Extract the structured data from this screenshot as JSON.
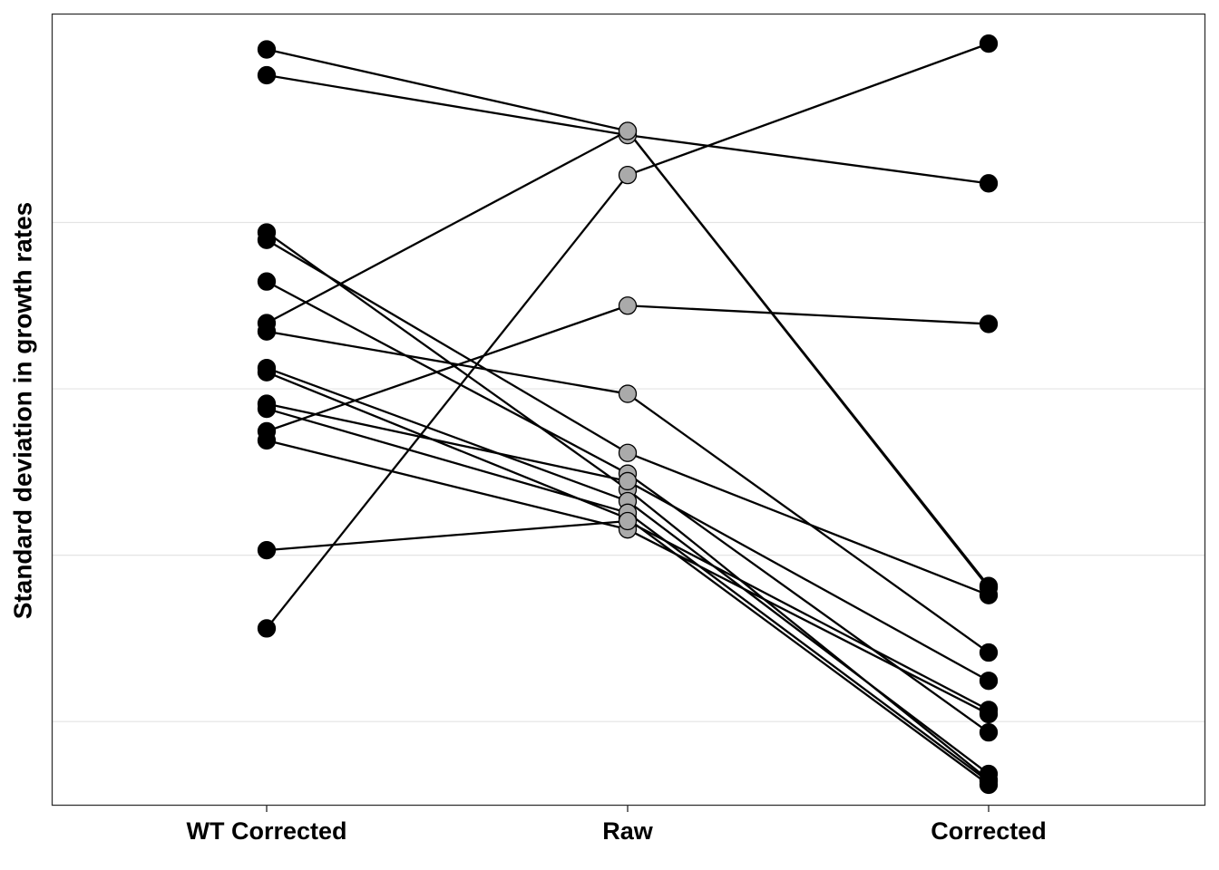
{
  "chart_data": {
    "type": "line",
    "title": "",
    "xlabel": "",
    "ylabel": "Standard deviation in growth rates",
    "categories": [
      "WT Corrected",
      "Raw",
      "Corrected"
    ],
    "y_tick_labels_shown": false,
    "grid": "horizontal major lines only",
    "legend": "none",
    "colors": {
      "line": "#000000",
      "wt_corrected_point": "#000000",
      "raw_point": "#aaaaaa",
      "corrected_point": "#000000",
      "gridline": "#e4e4e4",
      "panel_border": "#333333"
    },
    "ylim": [
      0.1,
      1.05
    ],
    "y_gridlines": [
      0.2,
      0.4,
      0.6,
      0.8
    ],
    "series": [
      {
        "values": [
          1.008,
          0.91,
          0.363
        ]
      },
      {
        "values": [
          0.977,
          0.905,
          0.847
        ]
      },
      {
        "values": [
          0.788,
          0.479,
          0.13
        ]
      },
      {
        "values": [
          0.779,
          0.523,
          0.352
        ]
      },
      {
        "values": [
          0.729,
          0.498,
          0.187
        ]
      },
      {
        "values": [
          0.679,
          0.91,
          0.361
        ]
      },
      {
        "values": [
          0.669,
          0.594,
          0.283
        ]
      },
      {
        "values": [
          0.625,
          0.465,
          0.137
        ]
      },
      {
        "values": [
          0.62,
          0.444,
          0.124
        ]
      },
      {
        "values": [
          0.582,
          0.489,
          0.249
        ]
      },
      {
        "values": [
          0.576,
          0.451,
          0.128
        ]
      },
      {
        "values": [
          0.549,
          0.7,
          0.678
        ]
      },
      {
        "values": [
          0.538,
          0.431,
          0.209
        ]
      },
      {
        "values": [
          0.406,
          0.441,
          0.214
        ]
      },
      {
        "values": [
          0.312,
          0.857,
          1.015
        ]
      }
    ]
  }
}
